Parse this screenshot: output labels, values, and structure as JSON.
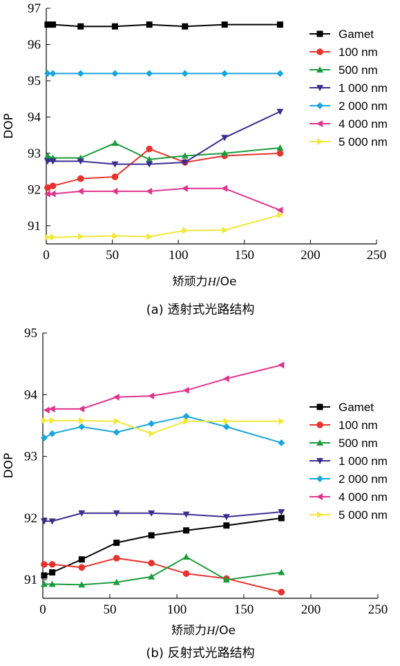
{
  "chart_data": [
    {
      "type": "line",
      "caption": "(a) 透射式光路结构",
      "xlabel_prefix": "矫顽力",
      "xlabel_var": "H",
      "xlabel_unit": "/Oe",
      "ylabel": "DOP",
      "xlim": [
        0,
        250
      ],
      "ylim": [
        90.5,
        97
      ],
      "xticks": [
        0,
        50,
        100,
        150,
        200,
        250
      ],
      "yticks": [
        91,
        92,
        93,
        94,
        95,
        96,
        97
      ],
      "series": [
        {
          "name": "Gamet",
          "color": "#000000",
          "marker": "square",
          "x": [
            1,
            5,
            26,
            52,
            78,
            105,
            135,
            177
          ],
          "y": [
            96.55,
            96.55,
            96.5,
            96.5,
            96.55,
            96.5,
            96.55,
            96.55
          ]
        },
        {
          "name": "100 nm",
          "color": "#e8322d",
          "marker": "circle",
          "x": [
            1,
            5,
            26,
            52,
            78,
            105,
            135,
            177
          ],
          "y": [
            92.05,
            92.1,
            92.3,
            92.35,
            93.12,
            92.75,
            92.93,
            93.0
          ]
        },
        {
          "name": "500 nm",
          "color": "#1a9b3c",
          "marker": "triangle-up",
          "x": [
            1,
            5,
            26,
            52,
            78,
            105,
            135,
            177
          ],
          "y": [
            92.93,
            92.87,
            92.87,
            93.28,
            92.83,
            92.93,
            93.0,
            93.15
          ]
        },
        {
          "name": "1 000 nm",
          "color": "#3b2e8e",
          "marker": "triangle-down",
          "x": [
            1,
            5,
            26,
            52,
            78,
            105,
            135,
            177
          ],
          "y": [
            92.78,
            92.78,
            92.78,
            92.7,
            92.7,
            92.75,
            93.43,
            94.15
          ]
        },
        {
          "name": "2 000 nm",
          "color": "#1aa5dc",
          "marker": "diamond",
          "x": [
            1,
            5,
            26,
            52,
            78,
            105,
            135,
            177
          ],
          "y": [
            95.2,
            95.2,
            95.2,
            95.2,
            95.2,
            95.2,
            95.2,
            95.2
          ]
        },
        {
          "name": "4 000 nm",
          "color": "#e0338c",
          "marker": "triangle-left",
          "x": [
            1,
            5,
            26,
            52,
            78,
            105,
            135,
            177
          ],
          "y": [
            91.88,
            91.88,
            91.95,
            91.95,
            91.95,
            92.03,
            92.03,
            91.43
          ]
        },
        {
          "name": "5 000 nm",
          "color": "#f0e83a",
          "marker": "triangle-right",
          "x": [
            1,
            5,
            26,
            52,
            78,
            105,
            135,
            177
          ],
          "y": [
            90.68,
            90.68,
            90.7,
            90.72,
            90.7,
            90.87,
            90.88,
            91.3
          ]
        }
      ]
    },
    {
      "type": "line",
      "caption": "(b) 反射式光路结构",
      "xlabel_prefix": "矫顽力",
      "xlabel_var": "H",
      "xlabel_unit": "/Oe",
      "ylabel": "DOP",
      "xlim": [
        0,
        250
      ],
      "ylim": [
        90.7,
        95
      ],
      "xticks": [
        0,
        50,
        100,
        150,
        200,
        250
      ],
      "yticks": [
        91,
        92,
        93,
        94,
        95
      ],
      "series": [
        {
          "name": "Gamet",
          "color": "#000000",
          "marker": "square",
          "x": [
            1,
            7,
            29,
            55,
            81,
            107,
            137,
            178
          ],
          "y": [
            91.07,
            91.12,
            91.33,
            91.6,
            91.72,
            91.8,
            91.88,
            92.0
          ]
        },
        {
          "name": "100 nm",
          "color": "#e8322d",
          "marker": "circle",
          "x": [
            1,
            7,
            29,
            55,
            81,
            107,
            137,
            178
          ],
          "y": [
            91.25,
            91.25,
            91.2,
            91.35,
            91.27,
            91.1,
            91.02,
            90.8
          ]
        },
        {
          "name": "500 nm",
          "color": "#1a9b3c",
          "marker": "triangle-up",
          "x": [
            1,
            7,
            29,
            55,
            81,
            107,
            137,
            178
          ],
          "y": [
            90.93,
            90.93,
            90.92,
            90.96,
            91.05,
            91.37,
            91.0,
            91.12
          ]
        },
        {
          "name": "1 000 nm",
          "color": "#3b2e8e",
          "marker": "triangle-down",
          "x": [
            1,
            7,
            29,
            55,
            81,
            107,
            137,
            178
          ],
          "y": [
            91.95,
            91.95,
            92.08,
            92.08,
            92.08,
            92.06,
            92.02,
            92.1
          ]
        },
        {
          "name": "2 000 nm",
          "color": "#1aa5dc",
          "marker": "diamond",
          "x": [
            1,
            7,
            29,
            55,
            81,
            107,
            137,
            178
          ],
          "y": [
            93.3,
            93.37,
            93.48,
            93.39,
            93.53,
            93.65,
            93.48,
            93.22
          ]
        },
        {
          "name": "4 000 nm",
          "color": "#e0338c",
          "marker": "triangle-left",
          "x": [
            3,
            7,
            29,
            55,
            81,
            107,
            137,
            178
          ],
          "y": [
            93.75,
            93.77,
            93.77,
            93.96,
            93.98,
            94.07,
            94.26,
            94.48
          ]
        },
        {
          "name": "5 000 nm",
          "color": "#f0e83a",
          "marker": "triangle-right",
          "x": [
            1,
            7,
            29,
            55,
            81,
            107,
            137,
            178
          ],
          "y": [
            93.58,
            93.58,
            93.58,
            93.57,
            93.37,
            93.57,
            93.57,
            93.57
          ]
        }
      ]
    }
  ]
}
